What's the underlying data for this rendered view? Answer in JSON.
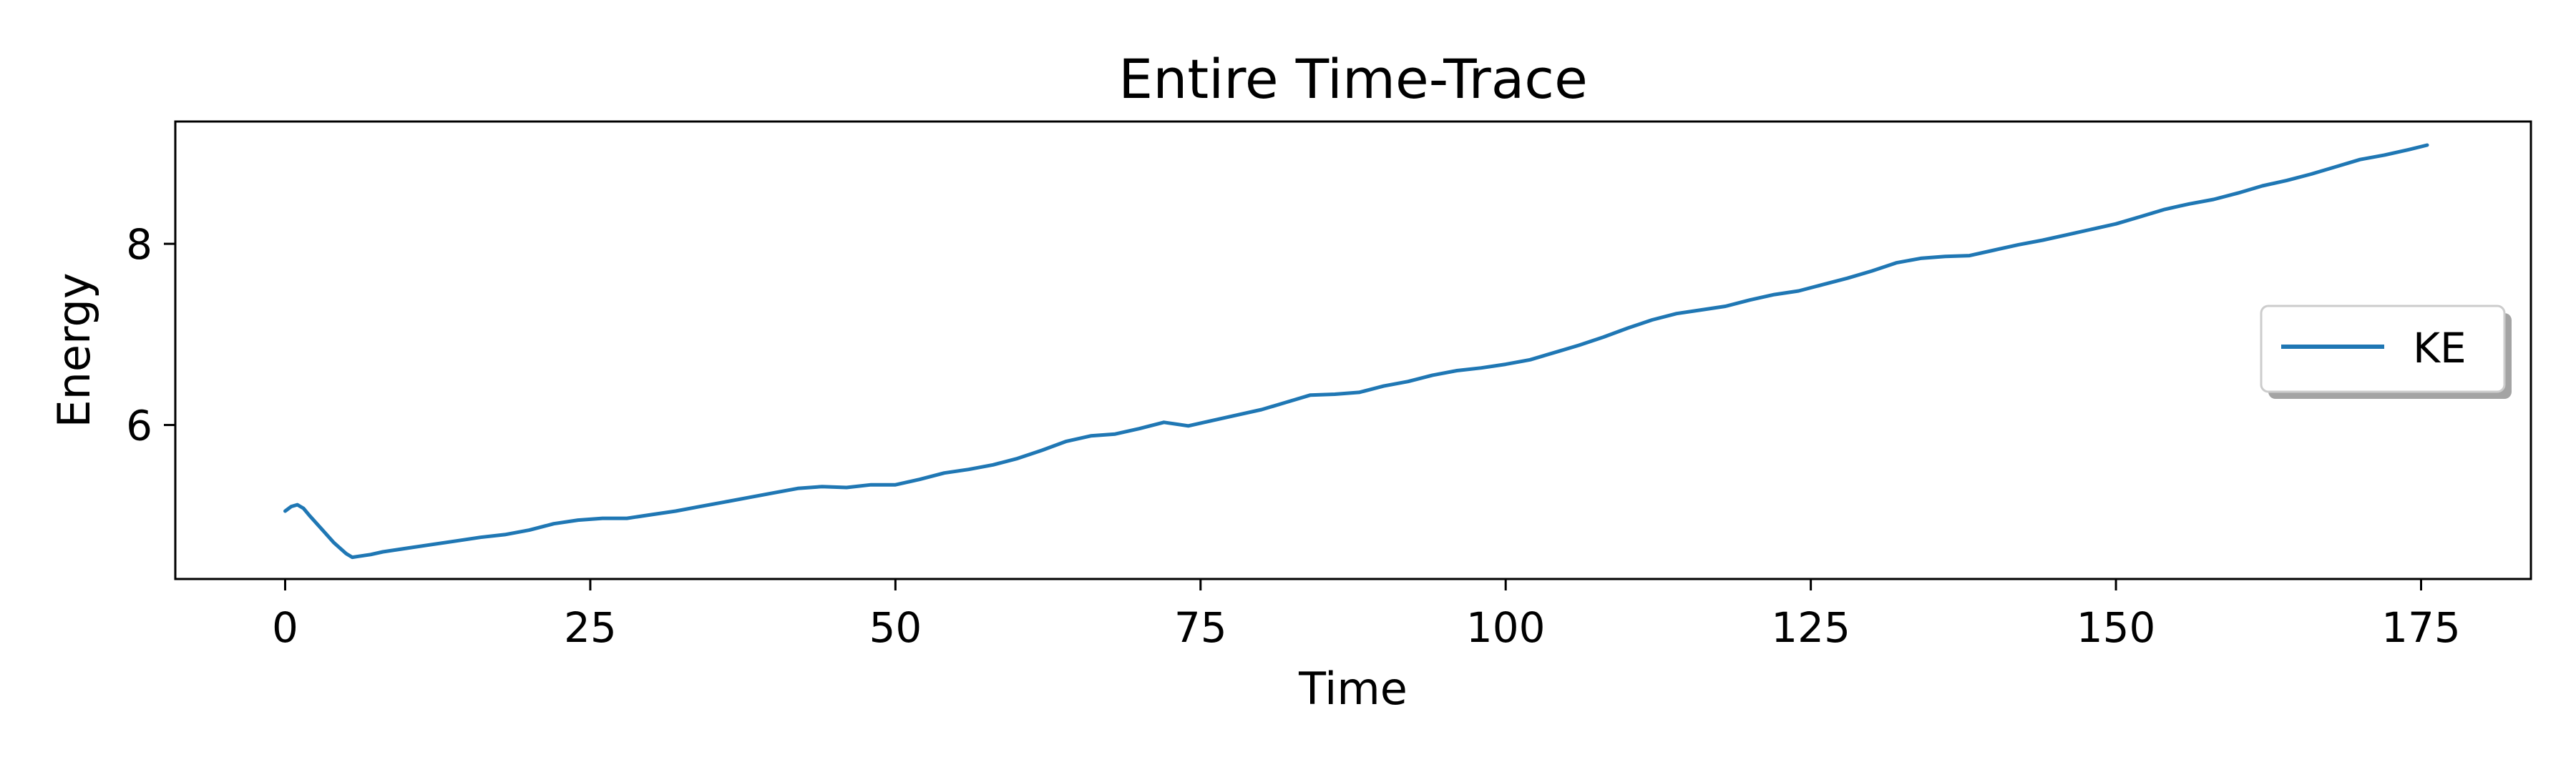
{
  "chart_data": {
    "type": "line",
    "title": "Entire Time-Trace",
    "xlabel": "Time",
    "ylabel": "Energy",
    "xlim": [
      -9,
      184
    ],
    "ylim": [
      4.3,
      9.35
    ],
    "xticks": [
      0,
      25,
      50,
      75,
      100,
      125,
      150,
      175
    ],
    "xtick_labels": [
      "0",
      "25",
      "50",
      "75",
      "100",
      "125",
      "150",
      "175"
    ],
    "yticks": [
      6,
      8
    ],
    "ytick_labels": [
      "6",
      "8"
    ],
    "grid": false,
    "legend": {
      "position": "center-right",
      "entries": [
        "KE"
      ]
    },
    "series": [
      {
        "name": "KE",
        "color": "#1f77b4",
        "x": [
          0,
          0.5,
          1,
          1.5,
          2,
          3,
          4,
          5,
          5.5,
          6,
          7,
          8,
          10,
          12,
          14,
          16,
          18,
          20,
          22,
          24,
          26,
          28,
          30,
          32,
          34,
          36,
          38,
          40,
          42,
          44,
          46,
          48,
          50,
          52,
          54,
          56,
          58,
          60,
          62,
          64,
          66,
          68,
          70,
          72,
          74,
          76,
          78,
          80,
          82,
          84,
          86,
          88,
          90,
          92,
          94,
          96,
          98,
          100,
          102,
          104,
          106,
          108,
          110,
          112,
          114,
          116,
          118,
          120,
          122,
          124,
          126,
          128,
          130,
          132,
          134,
          136,
          138,
          140,
          142,
          144,
          146,
          148,
          150,
          152,
          154,
          156,
          158,
          160,
          162,
          164,
          166,
          168,
          170,
          172,
          174,
          175.5
        ],
        "y": [
          5.05,
          5.1,
          5.12,
          5.08,
          5.0,
          4.85,
          4.7,
          4.58,
          4.54,
          4.55,
          4.57,
          4.6,
          4.64,
          4.68,
          4.72,
          4.76,
          4.79,
          4.84,
          4.91,
          4.95,
          4.97,
          4.97,
          5.01,
          5.05,
          5.1,
          5.15,
          5.2,
          5.25,
          5.3,
          5.32,
          5.31,
          5.34,
          5.34,
          5.4,
          5.47,
          5.51,
          5.56,
          5.63,
          5.72,
          5.82,
          5.88,
          5.9,
          5.96,
          6.03,
          5.99,
          6.05,
          6.11,
          6.17,
          6.25,
          6.33,
          6.34,
          6.36,
          6.43,
          6.48,
          6.55,
          6.6,
          6.63,
          6.67,
          6.72,
          6.8,
          6.88,
          6.97,
          7.07,
          7.16,
          7.23,
          7.27,
          7.31,
          7.38,
          7.44,
          7.48,
          7.55,
          7.62,
          7.7,
          7.79,
          7.84,
          7.86,
          7.87,
          7.93,
          7.99,
          8.04,
          8.1,
          8.16,
          8.22,
          8.3,
          8.38,
          8.44,
          8.49,
          8.56,
          8.64,
          8.7,
          8.77,
          8.85,
          8.93,
          8.98,
          9.04,
          9.09
        ]
      }
    ]
  }
}
